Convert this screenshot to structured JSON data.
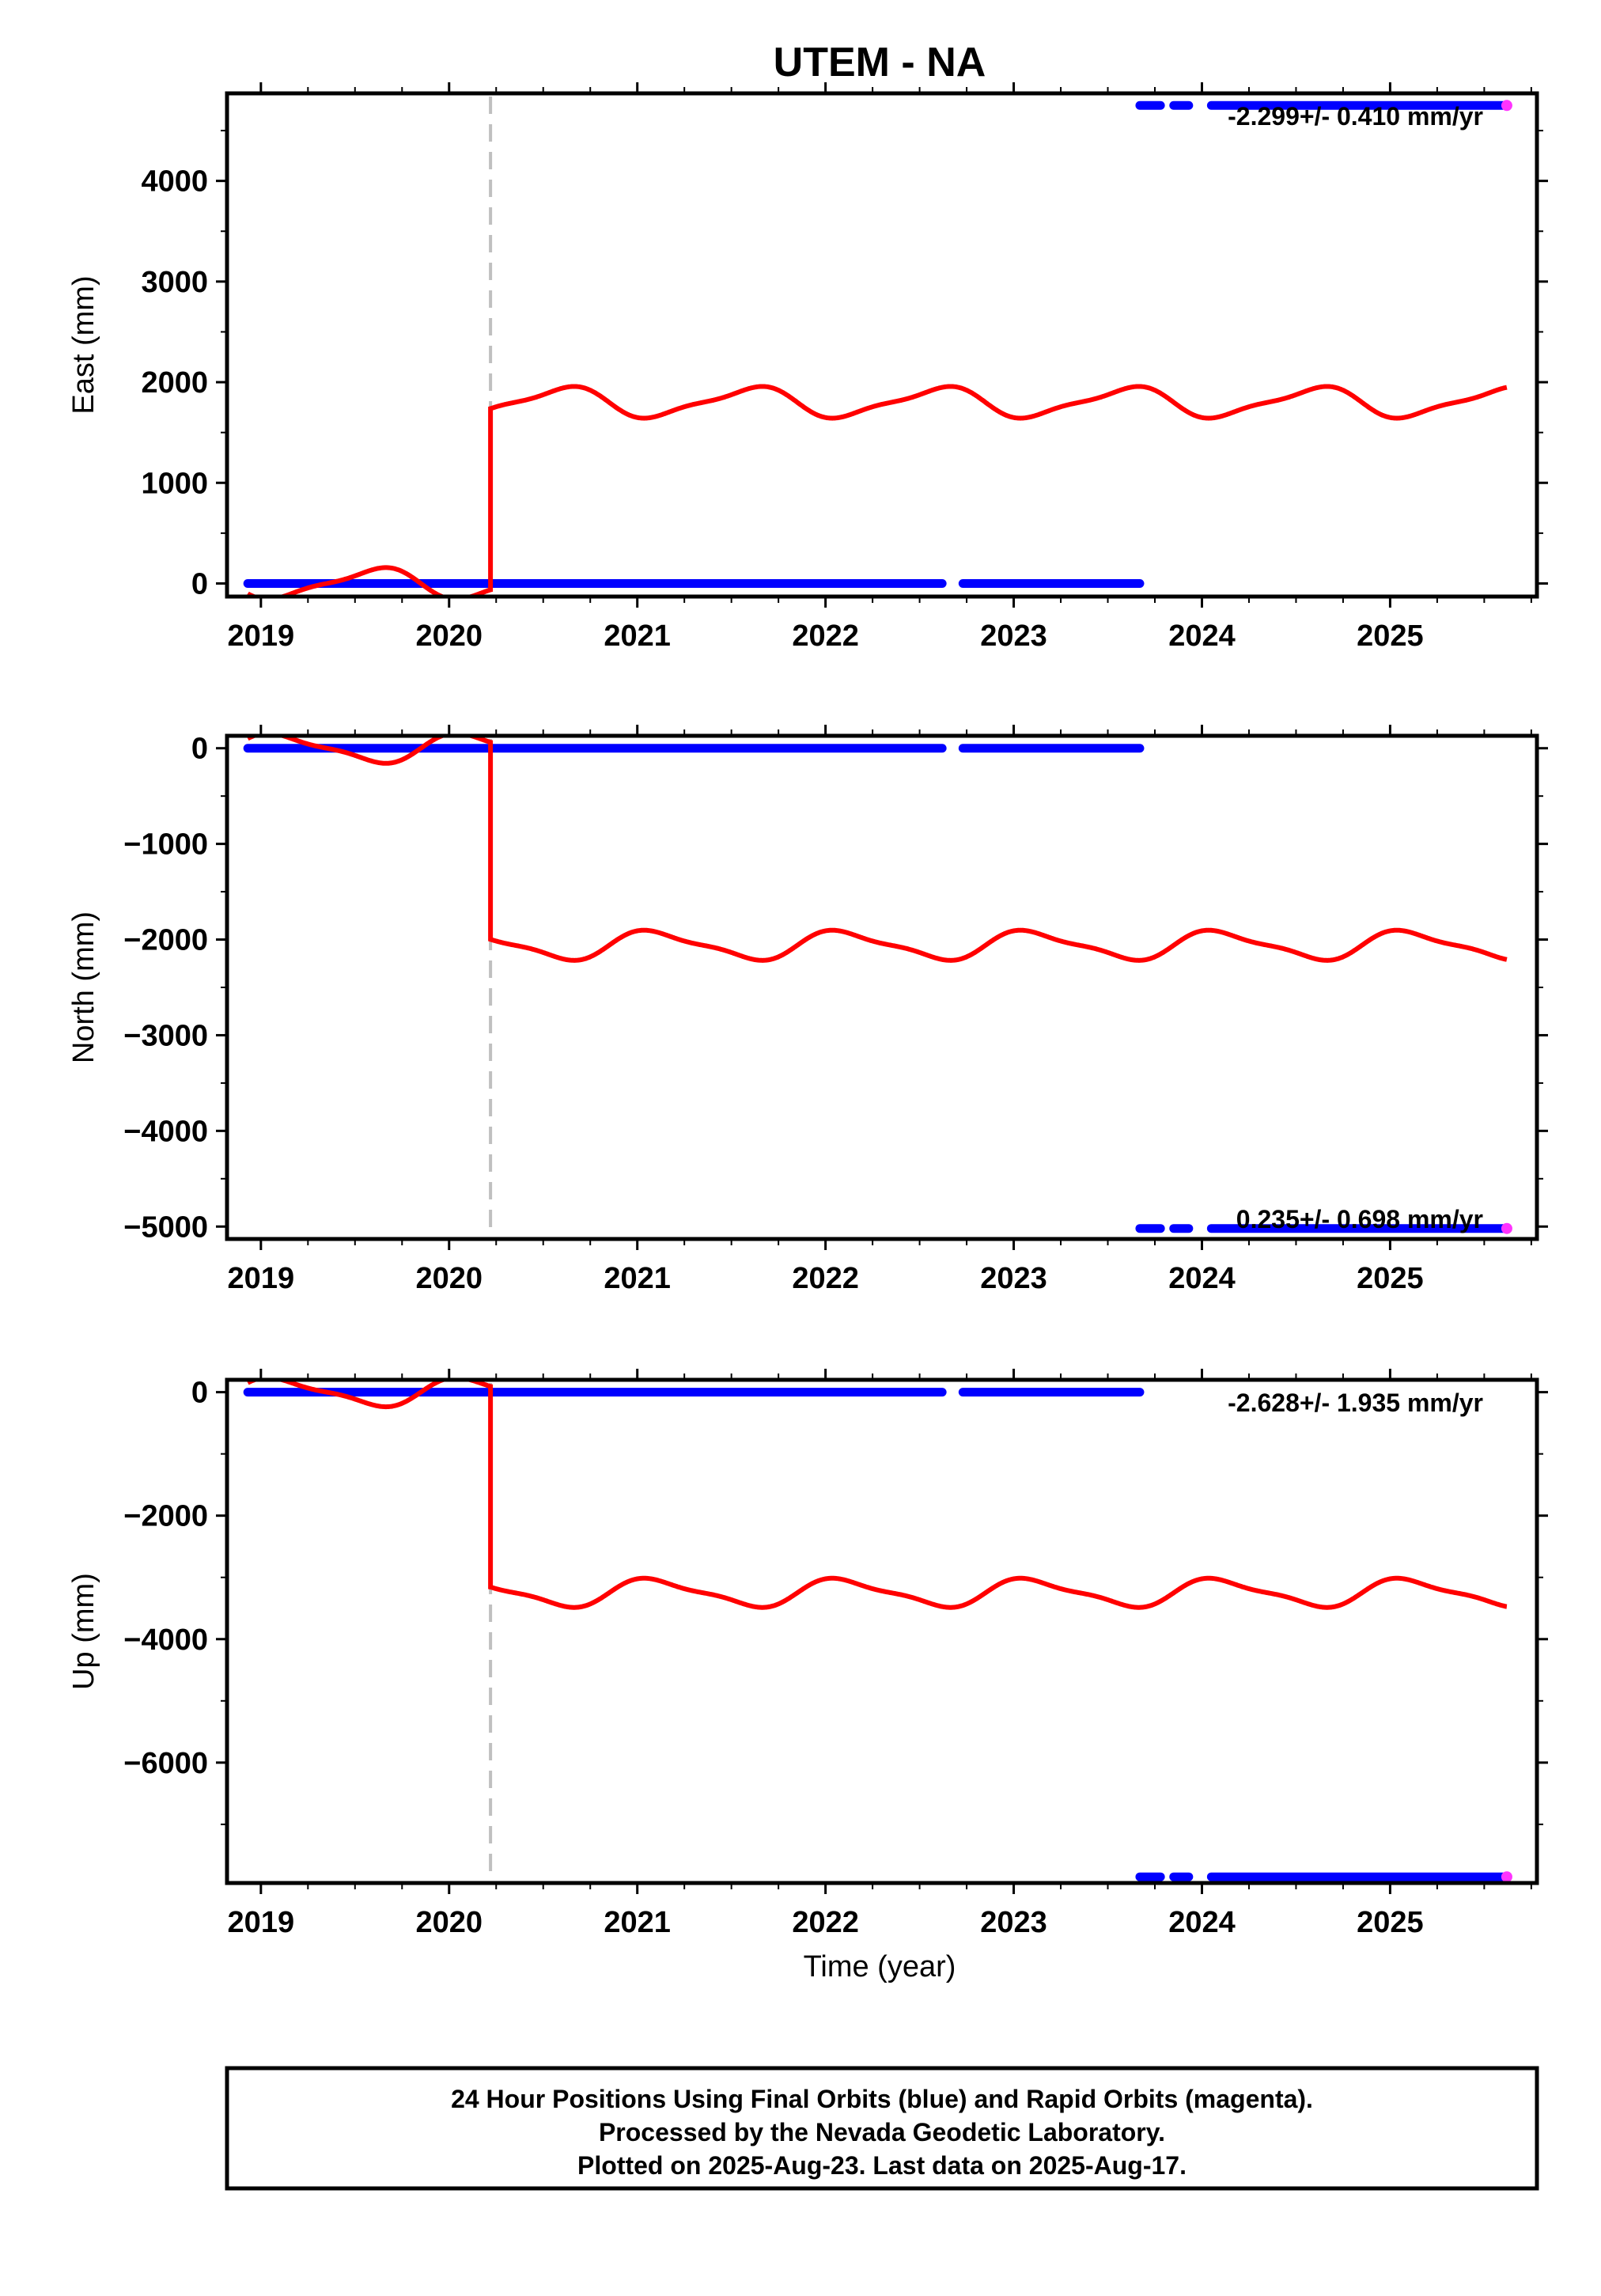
{
  "chart_data": {
    "type": "scatter",
    "title": "UTEM - NA",
    "xlabel": "Time (year)",
    "xlim": [
      2018.82,
      2025.78
    ],
    "x_ticks": [
      2019,
      2020,
      2021,
      2022,
      2023,
      2024,
      2025
    ],
    "x_tick_labels": [
      "2019",
      "2020",
      "2021",
      "2022",
      "2023",
      "2024",
      "2025"
    ],
    "offset_epoch": 2020.22,
    "colors": {
      "final_orbits": "#0000ff",
      "rapid_orbits": "#ff33ff",
      "model": "#ff0000",
      "offset_line": "#c0c0c0",
      "frame": "#000000"
    },
    "panels": [
      {
        "name": "East",
        "ylabel": "East (mm)",
        "ylim": [
          -130,
          4870
        ],
        "y_ticks": [
          0,
          1000,
          2000,
          3000,
          4000
        ],
        "y_tick_labels": [
          "0",
          "1000",
          "2000",
          "3000",
          "4000"
        ],
        "rate_text": "-2.299+/- 0.410 mm/yr",
        "final_segments": [
          {
            "x0": 2018.93,
            "x1": 2022.62,
            "y": 0
          },
          {
            "x0": 2022.73,
            "x1": 2023.67,
            "y": 0
          },
          {
            "x0": 2023.67,
            "x1": 2023.78,
            "y": 4750
          },
          {
            "x0": 2023.85,
            "x1": 2023.93,
            "y": 4750
          },
          {
            "x0": 2024.05,
            "x1": 2025.6,
            "y": 4750
          }
        ],
        "rapid_points": [
          {
            "x": 2025.62,
            "y": 4750
          }
        ],
        "model_pre": {
          "base": 0,
          "amp1": 140,
          "amp2": 40
        },
        "model_post": {
          "base": 1800,
          "amp1": 140,
          "amp2": 40
        },
        "model_end": 2025.62
      },
      {
        "name": "North",
        "ylabel": "North (mm)",
        "ylim": [
          -5130,
          130
        ],
        "y_ticks": [
          0,
          -1000,
          -2000,
          -3000,
          -4000,
          -5000
        ],
        "y_tick_labels": [
          "0",
          "−1000",
          "−2000",
          "−3000",
          "−4000",
          "−5000"
        ],
        "rate_text": "0.235+/- 0.698 mm/yr",
        "final_segments": [
          {
            "x0": 2018.93,
            "x1": 2022.62,
            "y": 0
          },
          {
            "x0": 2022.73,
            "x1": 2023.67,
            "y": 0
          },
          {
            "x0": 2023.67,
            "x1": 2023.78,
            "y": -5020
          },
          {
            "x0": 2023.85,
            "x1": 2023.93,
            "y": -5020
          },
          {
            "x0": 2024.05,
            "x1": 2025.6,
            "y": -5020
          }
        ],
        "rapid_points": [
          {
            "x": 2025.62,
            "y": -5020
          }
        ],
        "model_pre": {
          "base": 0,
          "amp1": -140,
          "amp2": -40
        },
        "model_post": {
          "base": -2060,
          "amp1": -140,
          "amp2": -40
        },
        "model_end": 2025.62
      },
      {
        "name": "Up",
        "ylabel": "Up (mm)",
        "ylim": [
          -7950,
          200
        ],
        "y_ticks": [
          0,
          -2000,
          -4000,
          -6000
        ],
        "y_tick_labels": [
          "0",
          "−2000",
          "−4000",
          "−6000"
        ],
        "rate_text": "-2.628+/- 1.935 mm/yr",
        "final_segments": [
          {
            "x0": 2018.93,
            "x1": 2022.62,
            "y": 0
          },
          {
            "x0": 2022.73,
            "x1": 2023.67,
            "y": 0
          },
          {
            "x0": 2023.67,
            "x1": 2023.78,
            "y": -7850
          },
          {
            "x0": 2023.85,
            "x1": 2023.93,
            "y": -7850
          },
          {
            "x0": 2024.05,
            "x1": 2025.6,
            "y": -7850
          }
        ],
        "rapid_points": [
          {
            "x": 2025.62,
            "y": -7850
          }
        ],
        "model_pre": {
          "base": 0,
          "amp1": -210,
          "amp2": -60
        },
        "model_post": {
          "base": -3250,
          "amp1": -210,
          "amp2": -60
        },
        "model_end": 2025.62
      }
    ],
    "caption_lines": [
      "24 Hour Positions Using Final Orbits (blue) and Rapid Orbits (magenta).",
      "Processed by the Nevada Geodetic Laboratory.",
      "Plotted on 2025-Aug-23. Last data on 2025-Aug-17."
    ]
  }
}
